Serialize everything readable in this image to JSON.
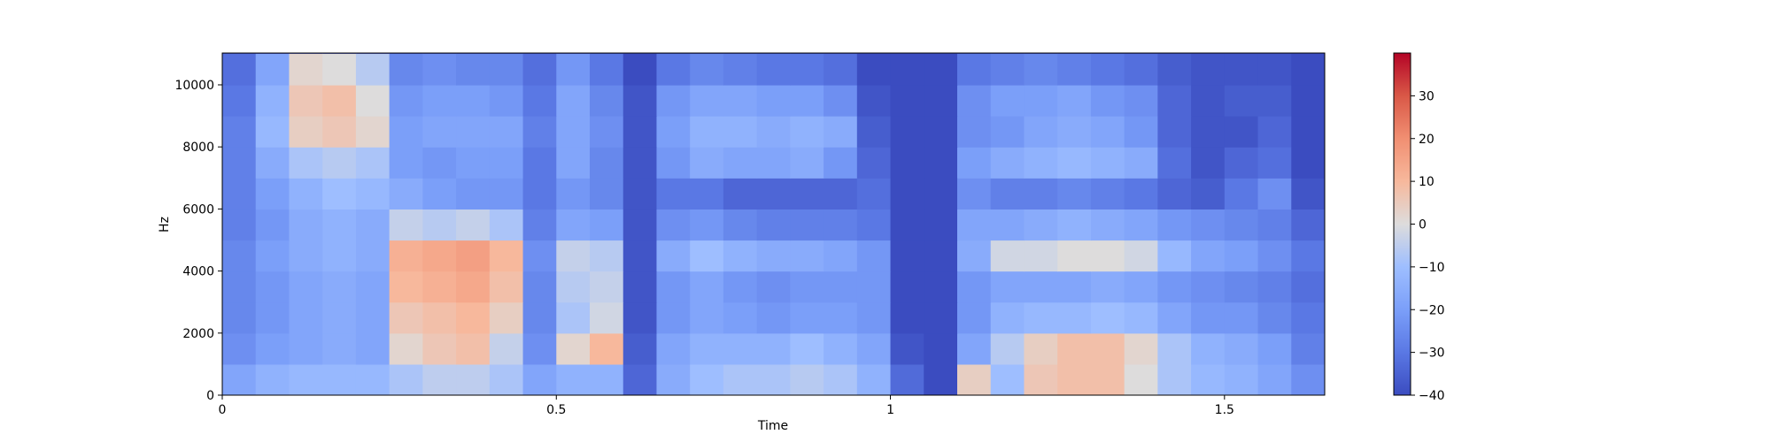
{
  "chart_data": {
    "type": "heatmap",
    "title": "",
    "xlabel": "Time",
    "ylabel": "Hz",
    "xlim": [
      0,
      1.65
    ],
    "ylim": [
      0,
      11025
    ],
    "x_ticks": [
      0,
      0.5,
      1,
      1.5
    ],
    "x_tick_labels": [
      "0",
      "0.5",
      "1",
      "1.5"
    ],
    "y_ticks": [
      0,
      2000,
      4000,
      6000,
      8000,
      10000
    ],
    "y_tick_labels": [
      "0",
      "2000",
      "4000",
      "6000",
      "8000",
      "10000"
    ],
    "colormap": "coolwarm",
    "colorbar": {
      "min": -40,
      "max": 40,
      "ticks": [
        -40,
        -30,
        -20,
        -10,
        0,
        10,
        20,
        30
      ],
      "tick_labels": [
        "−40",
        "−30",
        "−20",
        "−10",
        "0",
        "10",
        "20",
        "30"
      ]
    },
    "time_bins": [
      0.0,
      0.05,
      0.1,
      0.15,
      0.2,
      0.25,
      0.3,
      0.35,
      0.4,
      0.45,
      0.5,
      0.55,
      0.6,
      0.65,
      0.7,
      0.75,
      0.8,
      0.85,
      0.9,
      0.95,
      1.0,
      1.05,
      1.1,
      1.15,
      1.2,
      1.25,
      1.3,
      1.35,
      1.4,
      1.45,
      1.5,
      1.55,
      1.6
    ],
    "freq_bins": [
      500,
      1500,
      2500,
      3500,
      4500,
      5500,
      6500,
      7500,
      8500,
      9500,
      10500
    ],
    "db_values": [
      [
        -18,
        -14,
        -12,
        -12,
        -12,
        -8,
        -5,
        -5,
        -8,
        -18,
        -14,
        -14,
        -34,
        -16,
        -10,
        -8,
        -8,
        -6,
        -8,
        -14,
        -33,
        -40,
        4,
        -10,
        6,
        8,
        8,
        0,
        -8,
        -12,
        -14,
        -18,
        -24
      ],
      [
        -24,
        -20,
        -18,
        -16,
        -18,
        2,
        6,
        8,
        -4,
        -24,
        2,
        10,
        -36,
        -18,
        -14,
        -14,
        -14,
        -10,
        -14,
        -18,
        -38,
        -40,
        -18,
        -6,
        4,
        8,
        8,
        2,
        -8,
        -14,
        -16,
        -20,
        -28
      ],
      [
        -26,
        -22,
        -18,
        -16,
        -18,
        6,
        8,
        10,
        4,
        -26,
        -8,
        -2,
        -38,
        -22,
        -18,
        -20,
        -22,
        -20,
        -20,
        -22,
        -40,
        -40,
        -22,
        -14,
        -12,
        -12,
        -10,
        -12,
        -18,
        -22,
        -22,
        -26,
        -30
      ],
      [
        -26,
        -22,
        -18,
        -16,
        -18,
        10,
        12,
        14,
        8,
        -26,
        -6,
        -4,
        -38,
        -22,
        -18,
        -22,
        -24,
        -22,
        -22,
        -22,
        -40,
        -40,
        -22,
        -18,
        -18,
        -18,
        -16,
        -18,
        -22,
        -24,
        -26,
        -28,
        -32
      ],
      [
        -26,
        -20,
        -16,
        -14,
        -16,
        12,
        14,
        16,
        10,
        -24,
        -4,
        -6,
        -38,
        -16,
        -10,
        -14,
        -16,
        -16,
        -18,
        -22,
        -40,
        -40,
        -16,
        -2,
        -2,
        0,
        0,
        -2,
        -12,
        -18,
        -20,
        -24,
        -30
      ],
      [
        -28,
        -22,
        -16,
        -14,
        -16,
        -4,
        -6,
        -4,
        -8,
        -28,
        -18,
        -20,
        -38,
        -24,
        -22,
        -26,
        -28,
        -28,
        -28,
        -30,
        -40,
        -40,
        -18,
        -18,
        -16,
        -14,
        -16,
        -18,
        -22,
        -24,
        -26,
        -28,
        -34
      ],
      [
        -28,
        -20,
        -14,
        -10,
        -12,
        -16,
        -20,
        -22,
        -22,
        -30,
        -22,
        -26,
        -38,
        -30,
        -30,
        -34,
        -34,
        -34,
        -34,
        -32,
        -40,
        -40,
        -24,
        -28,
        -28,
        -26,
        -28,
        -30,
        -34,
        -36,
        -30,
        -24,
        -38
      ],
      [
        -28,
        -16,
        -8,
        -6,
        -8,
        -20,
        -22,
        -20,
        -20,
        -30,
        -18,
        -26,
        -38,
        -22,
        -16,
        -18,
        -18,
        -16,
        -22,
        -34,
        -40,
        -40,
        -20,
        -16,
        -14,
        -12,
        -14,
        -16,
        -32,
        -38,
        -34,
        -32,
        -40
      ],
      [
        -28,
        -12,
        4,
        6,
        2,
        -20,
        -18,
        -18,
        -18,
        -28,
        -18,
        -24,
        -38,
        -20,
        -14,
        -14,
        -16,
        -14,
        -16,
        -36,
        -40,
        -40,
        -24,
        -22,
        -18,
        -16,
        -18,
        -22,
        -34,
        -38,
        -38,
        -34,
        -40
      ],
      [
        -30,
        -14,
        6,
        8,
        0,
        -22,
        -20,
        -20,
        -22,
        -30,
        -18,
        -26,
        -38,
        -22,
        -18,
        -18,
        -20,
        -20,
        -24,
        -38,
        -40,
        -40,
        -24,
        -20,
        -20,
        -18,
        -22,
        -24,
        -34,
        -38,
        -36,
        -36,
        -40
      ],
      [
        -32,
        -18,
        2,
        0,
        -6,
        -26,
        -24,
        -26,
        -26,
        -32,
        -22,
        -30,
        -40,
        -30,
        -26,
        -28,
        -30,
        -30,
        -32,
        -40,
        -40,
        -40,
        -30,
        -28,
        -26,
        -28,
        -30,
        -32,
        -36,
        -38,
        -38,
        -38,
        -40
      ]
    ]
  }
}
